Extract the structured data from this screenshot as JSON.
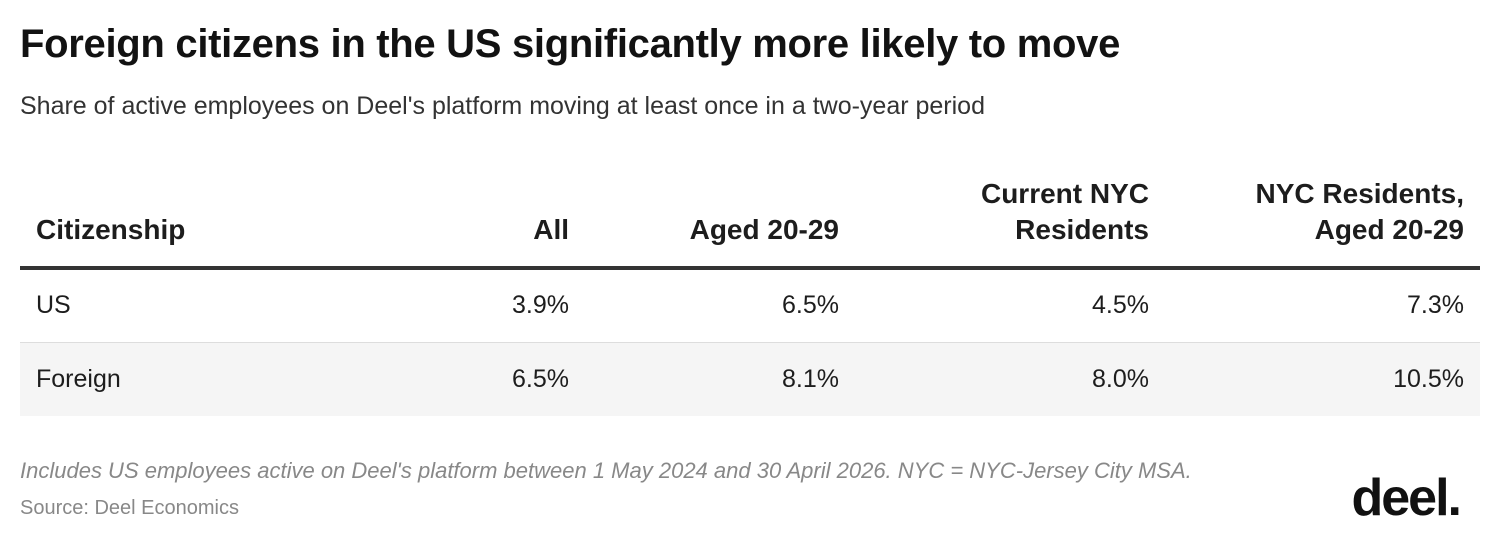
{
  "title": "Foreign citizens in the US significantly more likely to move",
  "subtitle": "Share of active employees on Deel's platform moving at least once in a two-year period",
  "chart_data": {
    "type": "table",
    "columns": [
      [
        "Citizenship"
      ],
      [
        "All"
      ],
      [
        "Aged 20-29"
      ],
      [
        "Current NYC",
        "Residents"
      ],
      [
        "NYC Residents,",
        "Aged 20-29"
      ]
    ],
    "rows": [
      {
        "label": "US",
        "values": [
          "3.9%",
          "6.5%",
          "4.5%",
          "7.3%"
        ]
      },
      {
        "label": "Foreign",
        "values": [
          "6.5%",
          "8.1%",
          "8.0%",
          "10.5%"
        ]
      }
    ]
  },
  "notes": "Includes US employees active on Deel's platform between 1 May 2024 and 30 April 2026. NYC = NYC-Jersey City MSA.",
  "source": "Source: Deel Economics",
  "logo": "deel."
}
